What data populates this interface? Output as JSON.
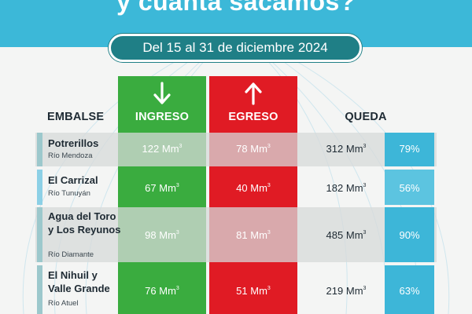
{
  "header": {
    "title": "y cuánta sacamos?",
    "date_range": "Del 15 al 31 de diciembre 2024"
  },
  "columns": {
    "embalse": "EMBALSE",
    "ingreso": "INGRESO",
    "egreso": "EGRESO",
    "queda": "QUEDA"
  },
  "unit": "Mm",
  "unit_exponent": "3",
  "rows": [
    {
      "name": "Potrerillos",
      "river": "Río Mendoza",
      "ingreso": "122",
      "egreso": "78",
      "queda": "312",
      "pct": "79%",
      "pct_value": 0.79
    },
    {
      "name": "El Carrizal",
      "river": "Río Tunuyán",
      "ingreso": "67",
      "egreso": "40",
      "queda": "182",
      "pct": "56%",
      "pct_value": 0.56
    },
    {
      "name": "Agua del Toro y Los Reyunos",
      "river": "Río Diamante",
      "ingreso": "98",
      "egreso": "81",
      "queda": "485",
      "pct": "90%",
      "pct_value": 0.9
    },
    {
      "name": "El Nihuil y Valle Grande",
      "river": "Río Atuel",
      "ingreso": "76",
      "egreso": "51",
      "queda": "219",
      "pct": "63%",
      "pct_value": 0.63
    }
  ],
  "colors": {
    "header": "#3cb8d8",
    "pill": "#1f7f86",
    "ingreso": "#3aac3f",
    "egreso": "#e01b24",
    "pct": "#3db6d8"
  },
  "icons": {
    "ingreso": "arrow-down-icon",
    "egreso": "arrow-up-icon"
  }
}
